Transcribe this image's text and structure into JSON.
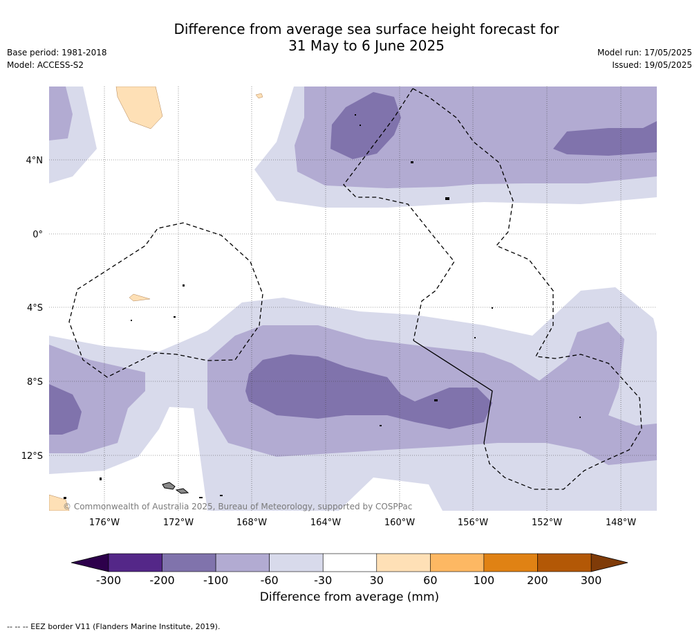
{
  "title_line1": "Difference from average sea surface height forecast for",
  "title_line2": "31 May to 6 June 2025",
  "base_period": "Base period: 1981-2018",
  "model": "Model: ACCESS-S2",
  "model_run": "Model run: 17/05/2025",
  "issued": "Issued: 19/05/2025",
  "copyright": "© Commonwealth of Australia 2025, Bureau of Meteorology, supported by COSPPac",
  "lon_labels": [
    "176°W",
    "172°W",
    "168°W",
    "164°W",
    "160°W",
    "156°W",
    "152°W",
    "148°W"
  ],
  "lat_labels": [
    "4°N",
    "0°",
    "4°S",
    "8°S",
    "12°S"
  ],
  "colorbar": {
    "title": "Difference from average (mm)",
    "ticks": [
      "-300",
      "-200",
      "-100",
      "-60",
      "-30",
      "30",
      "60",
      "100",
      "200",
      "300"
    ],
    "colors": [
      "#542788",
      "#8073ac",
      "#b2abd2",
      "#d8daeb",
      "#ffffff",
      "#fee0b6",
      "#fdb863",
      "#e08214",
      "#b35806"
    ],
    "low_extend_color": "#2d004b",
    "high_extend_color": "#7f3b08"
  },
  "legend_note": "--  --  -- EEZ border V11 (Flanders Marine Institute, 2019)."
}
